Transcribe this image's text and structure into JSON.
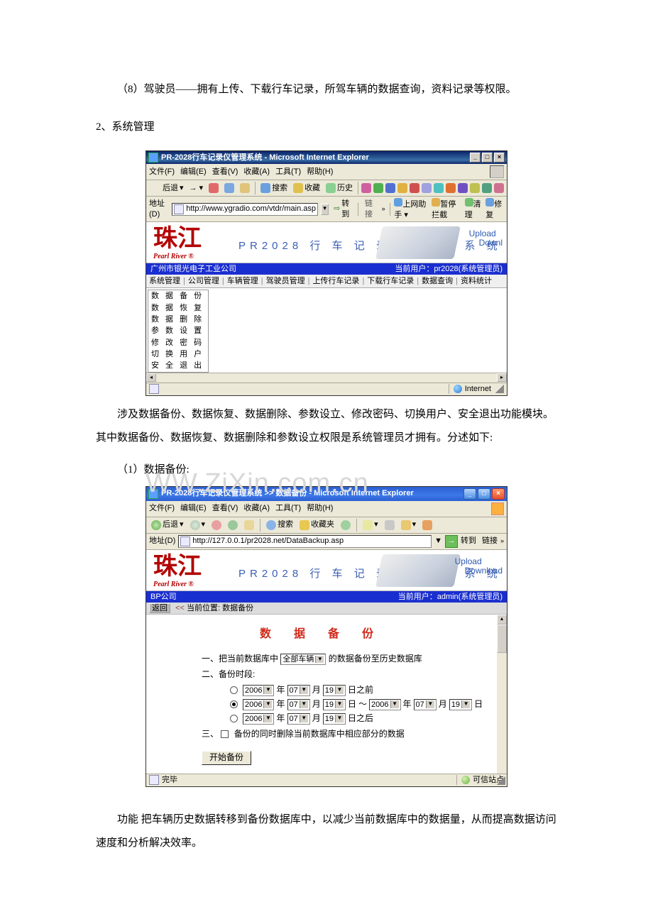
{
  "doc": {
    "p1": "（8）驾驶员——拥有上传、下载行车记录，所驾车辆的数据查询，资料记录等权限。",
    "h2": "2、系统管理",
    "p2": "涉及数据备份、数据恢复、数据删除、参数设立、修改密码、切换用户、安全退出功能模块。其中数据备份、数据恢复、数据删除和参数设立权限是系统管理员才拥有。分述如下:",
    "p3": "（1）数据备份:",
    "watermark": "WW.ZiXin.com.cn",
    "p4": "功能 把车辆历史数据转移到备份数据库中，以减少当前数据库中的数据量，从而提高数据访问速度和分析解决效率。"
  },
  "shot1": {
    "title": "PR-2028行车记录仪管理系统 - Microsoft Internet Explorer",
    "menu": [
      "文件(F)",
      "编辑(E)",
      "查看(V)",
      "收藏(A)",
      "工具(T)",
      "帮助(H)"
    ],
    "tb": {
      "back": "后退",
      "search": "搜索",
      "fav": "收藏",
      "hist": "历史"
    },
    "addr": {
      "label": "地址(D)",
      "url": "http://www.ygradio.com/vtdr/main.asp",
      "go": "转到",
      "links": "链接",
      "h1": "上网助手",
      "h2": "暂停拦截",
      "h3": "清理",
      "h4": "修复"
    },
    "banner": {
      "logo": "珠江",
      "logosub": "Pearl River ®",
      "title": "PR2028 行 车 记 录 仪 管 理 系 统",
      "upload": "Upload",
      "download": "Downl"
    },
    "bluebar": {
      "left": "广州市银光电子工业公司",
      "right": "当前用户：pr2028(系统管理员)"
    },
    "tabs": [
      "系统管理",
      "公司管理",
      "车辆管理",
      "驾驶员管理",
      "上传行车记录",
      "下载行车记录",
      "数据查询",
      "资料统计"
    ],
    "submenu": [
      "数 据 备 份",
      "数 据 恢 复",
      "数 据 删 除",
      "参 数 设 置",
      "修 改 密 码",
      "切 换 用 户",
      "安 全 退 出"
    ],
    "status": "Internet"
  },
  "shot2": {
    "title": "PR-2028行车记录仪管理系统 >> 数据备份 - Microsoft Internet Explorer",
    "menu": [
      "文件(F)",
      "编辑(E)",
      "查看(V)",
      "收藏(A)",
      "工具(T)",
      "帮助(H)"
    ],
    "tb": {
      "back": "后退",
      "search": "搜索",
      "fav": "收藏夹"
    },
    "addr": {
      "label": "地址(D)",
      "url": "http://127.0.0.1/pr2028.net/DataBackup.asp",
      "go": "转到",
      "links": "链接"
    },
    "banner": {
      "logo": "珠江",
      "logosub": "Pearl River ®",
      "title": "PR2028 行 车 记 录 仪 管 理 系 统",
      "upload": "Upload",
      "download": "Download"
    },
    "bluebar": {
      "left": "BP公司",
      "right": "当前用户：admin(系统管理员)"
    },
    "bcrumb": {
      "back": "返回",
      "lt": "<<",
      "pos": "当前位置: 数据备份"
    },
    "form": {
      "heading": "数 据 备 份",
      "row1a": "一、把当前数据库中",
      "row1sel": "全部车辆",
      "row1b": "的数据备份至历史数据库",
      "row2": "二、备份时段:",
      "y": "年",
      "m": "月",
      "d": "日",
      "before": "日之前",
      "after": "日之后",
      "sep": "～",
      "yv": "2006",
      "mv": "07",
      "dv": "19",
      "row3": "三、",
      "cb": "备份的同时删除当前数据库中相应部分的数据",
      "btn": "开始备份"
    },
    "status": {
      "done": "完毕",
      "trust": "可信站点"
    }
  },
  "colors": {
    "ico_back": "#7fbf7f",
    "ico_stop": "#e06a6a",
    "ico_ref": "#7aa8e0",
    "ico_home": "#e0c47a",
    "ico_search": "#6aa0e0",
    "ico_fav": "#e0c050",
    "ico_hist": "#8ad090",
    "row_icons": [
      "#d060a0",
      "#50b050",
      "#5070d0",
      "#e0b040",
      "#d05050",
      "#a0a0e0",
      "#50c0c0",
      "#e07030",
      "#7050c0",
      "#c0c050",
      "#50a080",
      "#d07090"
    ]
  }
}
